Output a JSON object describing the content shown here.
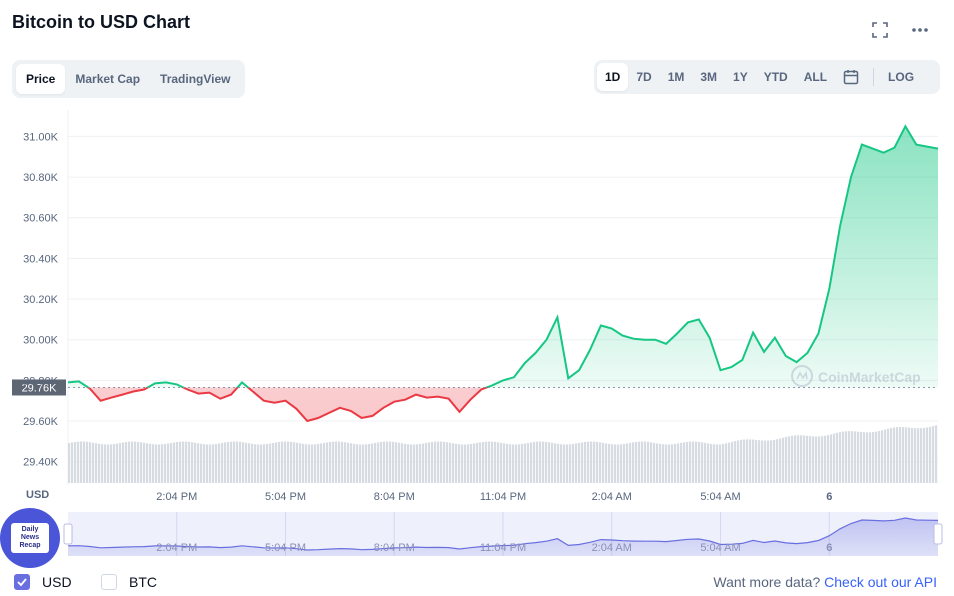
{
  "header": {
    "title": "Bitcoin to USD Chart",
    "fullscreen_icon": "expand-icon",
    "more_icon": "more-horizontal-icon"
  },
  "tabs": [
    {
      "label": "Price",
      "active": true
    },
    {
      "label": "Market Cap",
      "active": false
    },
    {
      "label": "TradingView",
      "active": false
    }
  ],
  "ranges": [
    {
      "label": "1D",
      "active": true
    },
    {
      "label": "7D",
      "active": false
    },
    {
      "label": "1M",
      "active": false
    },
    {
      "label": "3M",
      "active": false
    },
    {
      "label": "1Y",
      "active": false
    },
    {
      "label": "YTD",
      "active": false
    },
    {
      "label": "ALL",
      "active": false
    }
  ],
  "range_calendar_icon": "calendar-icon",
  "range_log_label": "LOG",
  "watermark": "CoinMarketCap",
  "badge": {
    "line1": "Daily",
    "line2": "News",
    "line3": "Recap"
  },
  "currency": {
    "usd_label": "USD",
    "btc_label": "BTC",
    "usd_checked": true,
    "btc_checked": false
  },
  "footer": {
    "want_text": "Want more data?",
    "api_link": "Check out our API"
  },
  "colors": {
    "up": "#16c784",
    "down": "#ea3943",
    "navigator": "#6a6fe0",
    "volume": "#d7dbe2"
  },
  "chart_data": {
    "type": "line",
    "ylabel": "USD",
    "yticks": [
      "29.40K",
      "29.60K",
      "29.80K",
      "30.00K",
      "30.20K",
      "30.40K",
      "30.60K",
      "30.80K",
      "31.00K"
    ],
    "ytick_values": [
      29400,
      29600,
      29800,
      30000,
      30200,
      30400,
      30600,
      30800,
      31000
    ],
    "ylim": [
      29300,
      31130
    ],
    "xticks": [
      "2:04 PM",
      "5:04 PM",
      "8:04 PM",
      "11:04 PM",
      "2:04 AM",
      "5:04 AM",
      "6"
    ],
    "xtick_hours": [
      3,
      6,
      9,
      12,
      15,
      18,
      21
    ],
    "xlim_hours": [
      0,
      24
    ],
    "reference_price_label": "29.76K",
    "reference_price": 29765,
    "grid": true,
    "series": [
      {
        "hours": [
          0,
          0.3,
          0.6,
          0.9,
          1.2,
          1.5,
          1.8,
          2.1,
          2.4,
          2.7,
          3,
          3.3,
          3.6,
          3.9,
          4.2,
          4.5,
          4.8,
          5.1,
          5.4,
          5.7,
          6,
          6.3,
          6.6,
          6.9,
          7.2,
          7.5,
          7.8,
          8.1,
          8.4,
          8.7,
          9,
          9.3,
          9.6,
          9.9,
          10.2,
          10.5,
          10.8,
          11.1,
          11.4,
          11.7,
          12,
          12.3,
          12.6,
          12.9,
          13.2,
          13.5,
          13.8,
          14.1,
          14.4,
          14.7,
          15,
          15.3,
          15.6,
          15.9,
          16.2,
          16.5,
          16.8,
          17.1,
          17.4,
          17.7,
          18,
          18.3,
          18.6,
          18.9,
          19.2,
          19.5,
          19.8,
          20.1,
          20.4,
          20.7,
          21,
          21.3,
          21.6,
          21.9,
          22.2,
          22.5,
          22.8,
          23.1,
          23.4,
          23.7,
          24
        ],
        "values": [
          29790,
          29795,
          29760,
          29700,
          29715,
          29730,
          29745,
          29755,
          29785,
          29790,
          29780,
          29755,
          29735,
          29740,
          29710,
          29730,
          29790,
          29745,
          29700,
          29690,
          29700,
          29660,
          29600,
          29615,
          29640,
          29665,
          29650,
          29615,
          29625,
          29665,
          29695,
          29705,
          29730,
          29715,
          29720,
          29710,
          29645,
          29705,
          29755,
          29775,
          29800,
          29815,
          29885,
          29935,
          30000,
          30110,
          29810,
          29850,
          29950,
          30070,
          30055,
          30020,
          30005,
          30000,
          30000,
          29980,
          30030,
          30085,
          30100,
          30010,
          29850,
          29865,
          29900,
          30035,
          29940,
          30010,
          29920,
          29890,
          29935,
          30030,
          30250,
          30560,
          30800,
          30960,
          30940,
          30920,
          30945,
          31050,
          30960,
          30950,
          30940
        ]
      }
    ]
  }
}
